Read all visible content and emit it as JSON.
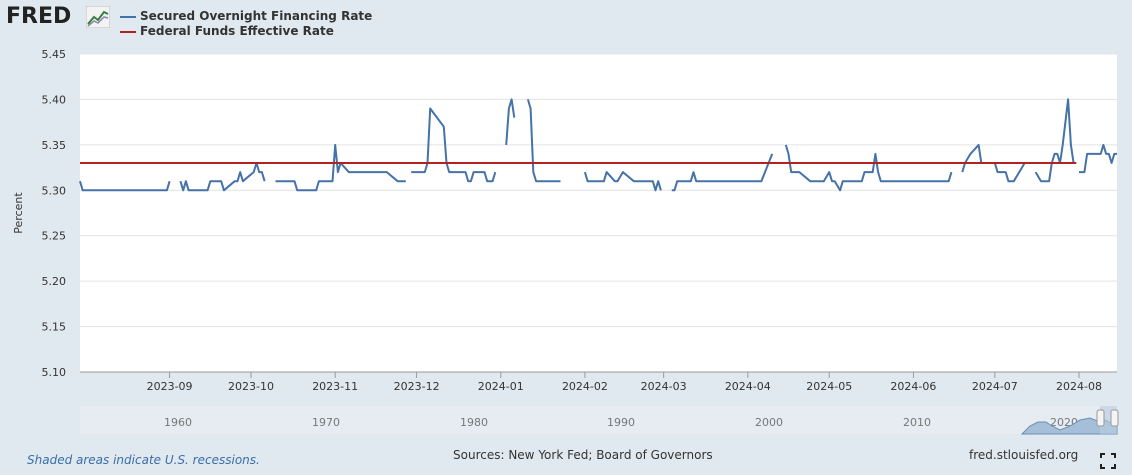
{
  "logo": {
    "text": "FRED"
  },
  "chart_data": {
    "type": "line",
    "ylabel": "Percent",
    "ylim": [
      5.1,
      5.45
    ],
    "yticks": [
      "5.10",
      "5.15",
      "5.20",
      "5.25",
      "5.30",
      "5.35",
      "5.40",
      "5.45"
    ],
    "xlim": [
      "2023-07-30",
      "2024-08-15"
    ],
    "xticks": [
      {
        "date": "2023-09-01",
        "label": "2023-09"
      },
      {
        "date": "2023-10-01",
        "label": "2023-10"
      },
      {
        "date": "2023-11-01",
        "label": "2023-11"
      },
      {
        "date": "2023-12-01",
        "label": "2023-12"
      },
      {
        "date": "2024-01-01",
        "label": "2024-01"
      },
      {
        "date": "2024-02-01",
        "label": "2024-02"
      },
      {
        "date": "2024-03-01",
        "label": "2024-03"
      },
      {
        "date": "2024-04-01",
        "label": "2024-04"
      },
      {
        "date": "2024-05-01",
        "label": "2024-05"
      },
      {
        "date": "2024-06-01",
        "label": "2024-06"
      },
      {
        "date": "2024-07-01",
        "label": "2024-07"
      },
      {
        "date": "2024-08-01",
        "label": "2024-08"
      }
    ],
    "grid": true,
    "legend_position": "top-left",
    "series": [
      {
        "name": "Secured Overnight Financing Rate",
        "color": "#4572a7",
        "points": [
          [
            "2023-07-30",
            5.31
          ],
          [
            "2023-07-31",
            5.3
          ],
          [
            "2023-08-31",
            5.3
          ],
          [
            "2023-09-01",
            5.31
          ],
          null,
          [
            "2023-09-05",
            5.31
          ],
          [
            "2023-09-06",
            5.3
          ],
          [
            "2023-09-07",
            5.31
          ],
          [
            "2023-09-08",
            5.3
          ],
          [
            "2023-09-15",
            5.3
          ],
          [
            "2023-09-16",
            5.31
          ],
          [
            "2023-09-20",
            5.31
          ],
          [
            "2023-09-21",
            5.3
          ],
          [
            "2023-09-25",
            5.31
          ],
          [
            "2023-09-26",
            5.31
          ],
          [
            "2023-09-27",
            5.32
          ],
          [
            "2023-09-28",
            5.31
          ],
          [
            "2023-10-02",
            5.32
          ],
          [
            "2023-10-03",
            5.33
          ],
          [
            "2023-10-04",
            5.32
          ],
          [
            "2023-10-05",
            5.32
          ],
          [
            "2023-10-06",
            5.31
          ],
          null,
          [
            "2023-10-10",
            5.31
          ],
          [
            "2023-10-17",
            5.31
          ],
          [
            "2023-10-18",
            5.3
          ],
          [
            "2023-10-25",
            5.3
          ],
          [
            "2023-10-26",
            5.31
          ],
          [
            "2023-10-31",
            5.31
          ],
          [
            "2023-11-01",
            5.35
          ],
          [
            "2023-11-02",
            5.32
          ],
          [
            "2023-11-03",
            5.33
          ],
          [
            "2023-11-06",
            5.32
          ],
          [
            "2023-11-20",
            5.32
          ],
          [
            "2023-11-24",
            5.31
          ],
          [
            "2023-11-27",
            5.31
          ],
          null,
          [
            "2023-11-29",
            5.32
          ],
          [
            "2023-12-04",
            5.32
          ],
          [
            "2023-12-05",
            5.33
          ],
          [
            "2023-12-06",
            5.39
          ],
          [
            "2023-12-11",
            5.37
          ],
          [
            "2023-12-12",
            5.33
          ],
          [
            "2023-12-13",
            5.32
          ],
          [
            "2023-12-19",
            5.32
          ],
          [
            "2023-12-20",
            5.31
          ],
          [
            "2023-12-21",
            5.31
          ],
          [
            "2023-12-22",
            5.32
          ],
          [
            "2023-12-26",
            5.32
          ],
          [
            "2023-12-27",
            5.31
          ],
          [
            "2023-12-29",
            5.31
          ],
          [
            "2023-12-30",
            5.32
          ],
          null,
          [
            "2024-01-03",
            5.35
          ],
          [
            "2024-01-04",
            5.39
          ],
          [
            "2024-01-05",
            5.4
          ],
          [
            "2024-01-06",
            5.38
          ],
          null,
          [
            "2024-01-11",
            5.4
          ],
          [
            "2024-01-12",
            5.39
          ],
          [
            "2024-01-13",
            5.32
          ],
          [
            "2024-01-14",
            5.31
          ],
          [
            "2024-01-23",
            5.31
          ],
          null,
          [
            "2024-02-01",
            5.32
          ],
          [
            "2024-02-02",
            5.31
          ],
          [
            "2024-02-07",
            5.31
          ],
          [
            "2024-02-08",
            5.31
          ],
          [
            "2024-02-09",
            5.32
          ],
          [
            "2024-02-12",
            5.31
          ],
          [
            "2024-02-13",
            5.31
          ],
          [
            "2024-02-15",
            5.32
          ],
          [
            "2024-02-19",
            5.31
          ],
          [
            "2024-02-26",
            5.31
          ],
          [
            "2024-02-27",
            5.3
          ],
          [
            "2024-02-28",
            5.31
          ],
          [
            "2024-02-29",
            5.3
          ],
          null,
          [
            "2024-03-04",
            5.3
          ],
          [
            "2024-03-05",
            5.3
          ],
          [
            "2024-03-06",
            5.31
          ],
          [
            "2024-03-11",
            5.31
          ],
          [
            "2024-03-12",
            5.32
          ],
          [
            "2024-03-13",
            5.31
          ],
          [
            "2024-04-06",
            5.31
          ],
          [
            "2024-04-10",
            5.34
          ],
          null,
          [
            "2024-04-15",
            5.35
          ],
          [
            "2024-04-16",
            5.34
          ],
          [
            "2024-04-17",
            5.32
          ],
          [
            "2024-04-20",
            5.32
          ],
          [
            "2024-04-24",
            5.31
          ],
          [
            "2024-04-29",
            5.31
          ],
          [
            "2024-05-01",
            5.32
          ],
          [
            "2024-05-02",
            5.31
          ],
          [
            "2024-05-03",
            5.31
          ],
          [
            "2024-05-05",
            5.3
          ],
          [
            "2024-05-06",
            5.31
          ],
          [
            "2024-05-13",
            5.31
          ],
          [
            "2024-05-14",
            5.32
          ],
          [
            "2024-05-17",
            5.32
          ],
          [
            "2024-05-18",
            5.34
          ],
          [
            "2024-05-19",
            5.32
          ],
          [
            "2024-05-20",
            5.31
          ],
          [
            "2024-06-14",
            5.31
          ],
          [
            "2024-06-15",
            5.32
          ],
          null,
          [
            "2024-06-19",
            5.32
          ],
          [
            "2024-06-20",
            5.33
          ],
          [
            "2024-06-22",
            5.34
          ],
          [
            "2024-06-25",
            5.35
          ],
          [
            "2024-06-26",
            5.33
          ],
          [
            "2024-07-01",
            5.33
          ],
          [
            "2024-07-02",
            5.32
          ],
          [
            "2024-07-05",
            5.32
          ],
          [
            "2024-07-06",
            5.31
          ],
          [
            "2024-07-08",
            5.31
          ],
          [
            "2024-07-12",
            5.33
          ],
          null,
          [
            "2024-07-16",
            5.32
          ],
          [
            "2024-07-18",
            5.31
          ],
          [
            "2024-07-21",
            5.31
          ],
          [
            "2024-07-22",
            5.33
          ],
          [
            "2024-07-23",
            5.34
          ],
          [
            "2024-07-24",
            5.34
          ],
          [
            "2024-07-25",
            5.33
          ],
          [
            "2024-07-26",
            5.35
          ],
          [
            "2024-07-28",
            5.4
          ],
          [
            "2024-07-29",
            5.35
          ],
          [
            "2024-07-30",
            5.33
          ],
          null,
          [
            "2024-08-01",
            5.32
          ],
          [
            "2024-08-03",
            5.32
          ],
          [
            "2024-08-04",
            5.34
          ],
          [
            "2024-08-09",
            5.34
          ],
          [
            "2024-08-10",
            5.35
          ],
          [
            "2024-08-11",
            5.34
          ],
          [
            "2024-08-12",
            5.34
          ],
          [
            "2024-08-13",
            5.33
          ],
          [
            "2024-08-14",
            5.34
          ],
          [
            "2024-08-15",
            5.34
          ]
        ]
      },
      {
        "name": "Federal Funds Effective Rate",
        "color": "#b22222",
        "points": [
          [
            "2023-07-30",
            5.33
          ],
          [
            "2024-07-31",
            5.33
          ]
        ]
      }
    ]
  },
  "navigator": {
    "labels": [
      "1960",
      "1970",
      "1980",
      "1990",
      "2000",
      "2010",
      "2020"
    ]
  },
  "footer": {
    "recession_note": "Shaded areas indicate U.S. recessions.",
    "sources": "Sources: New York Fed; Board of Governors",
    "url": "fred.stlouisfed.org"
  }
}
